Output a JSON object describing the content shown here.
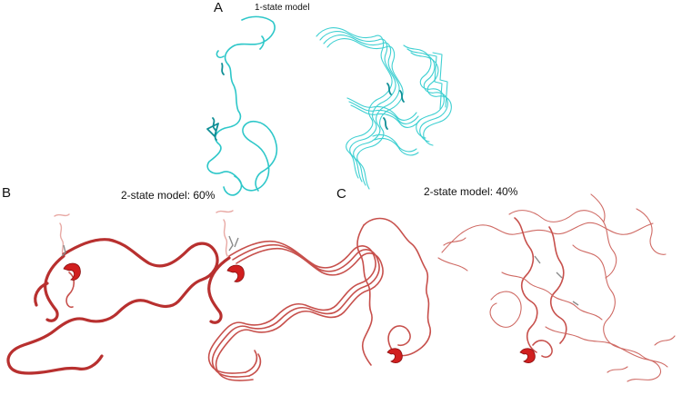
{
  "panels": {
    "a": {
      "letter": "A",
      "title": "1-state model"
    },
    "b": {
      "letter": "B",
      "title": "2-state model: 60%"
    },
    "c": {
      "letter": "C",
      "title": "2-state model: 40%"
    }
  },
  "colors": {
    "state1": "#2ec7c9",
    "state2": "#b8302f",
    "helix": "#d11f1f"
  }
}
